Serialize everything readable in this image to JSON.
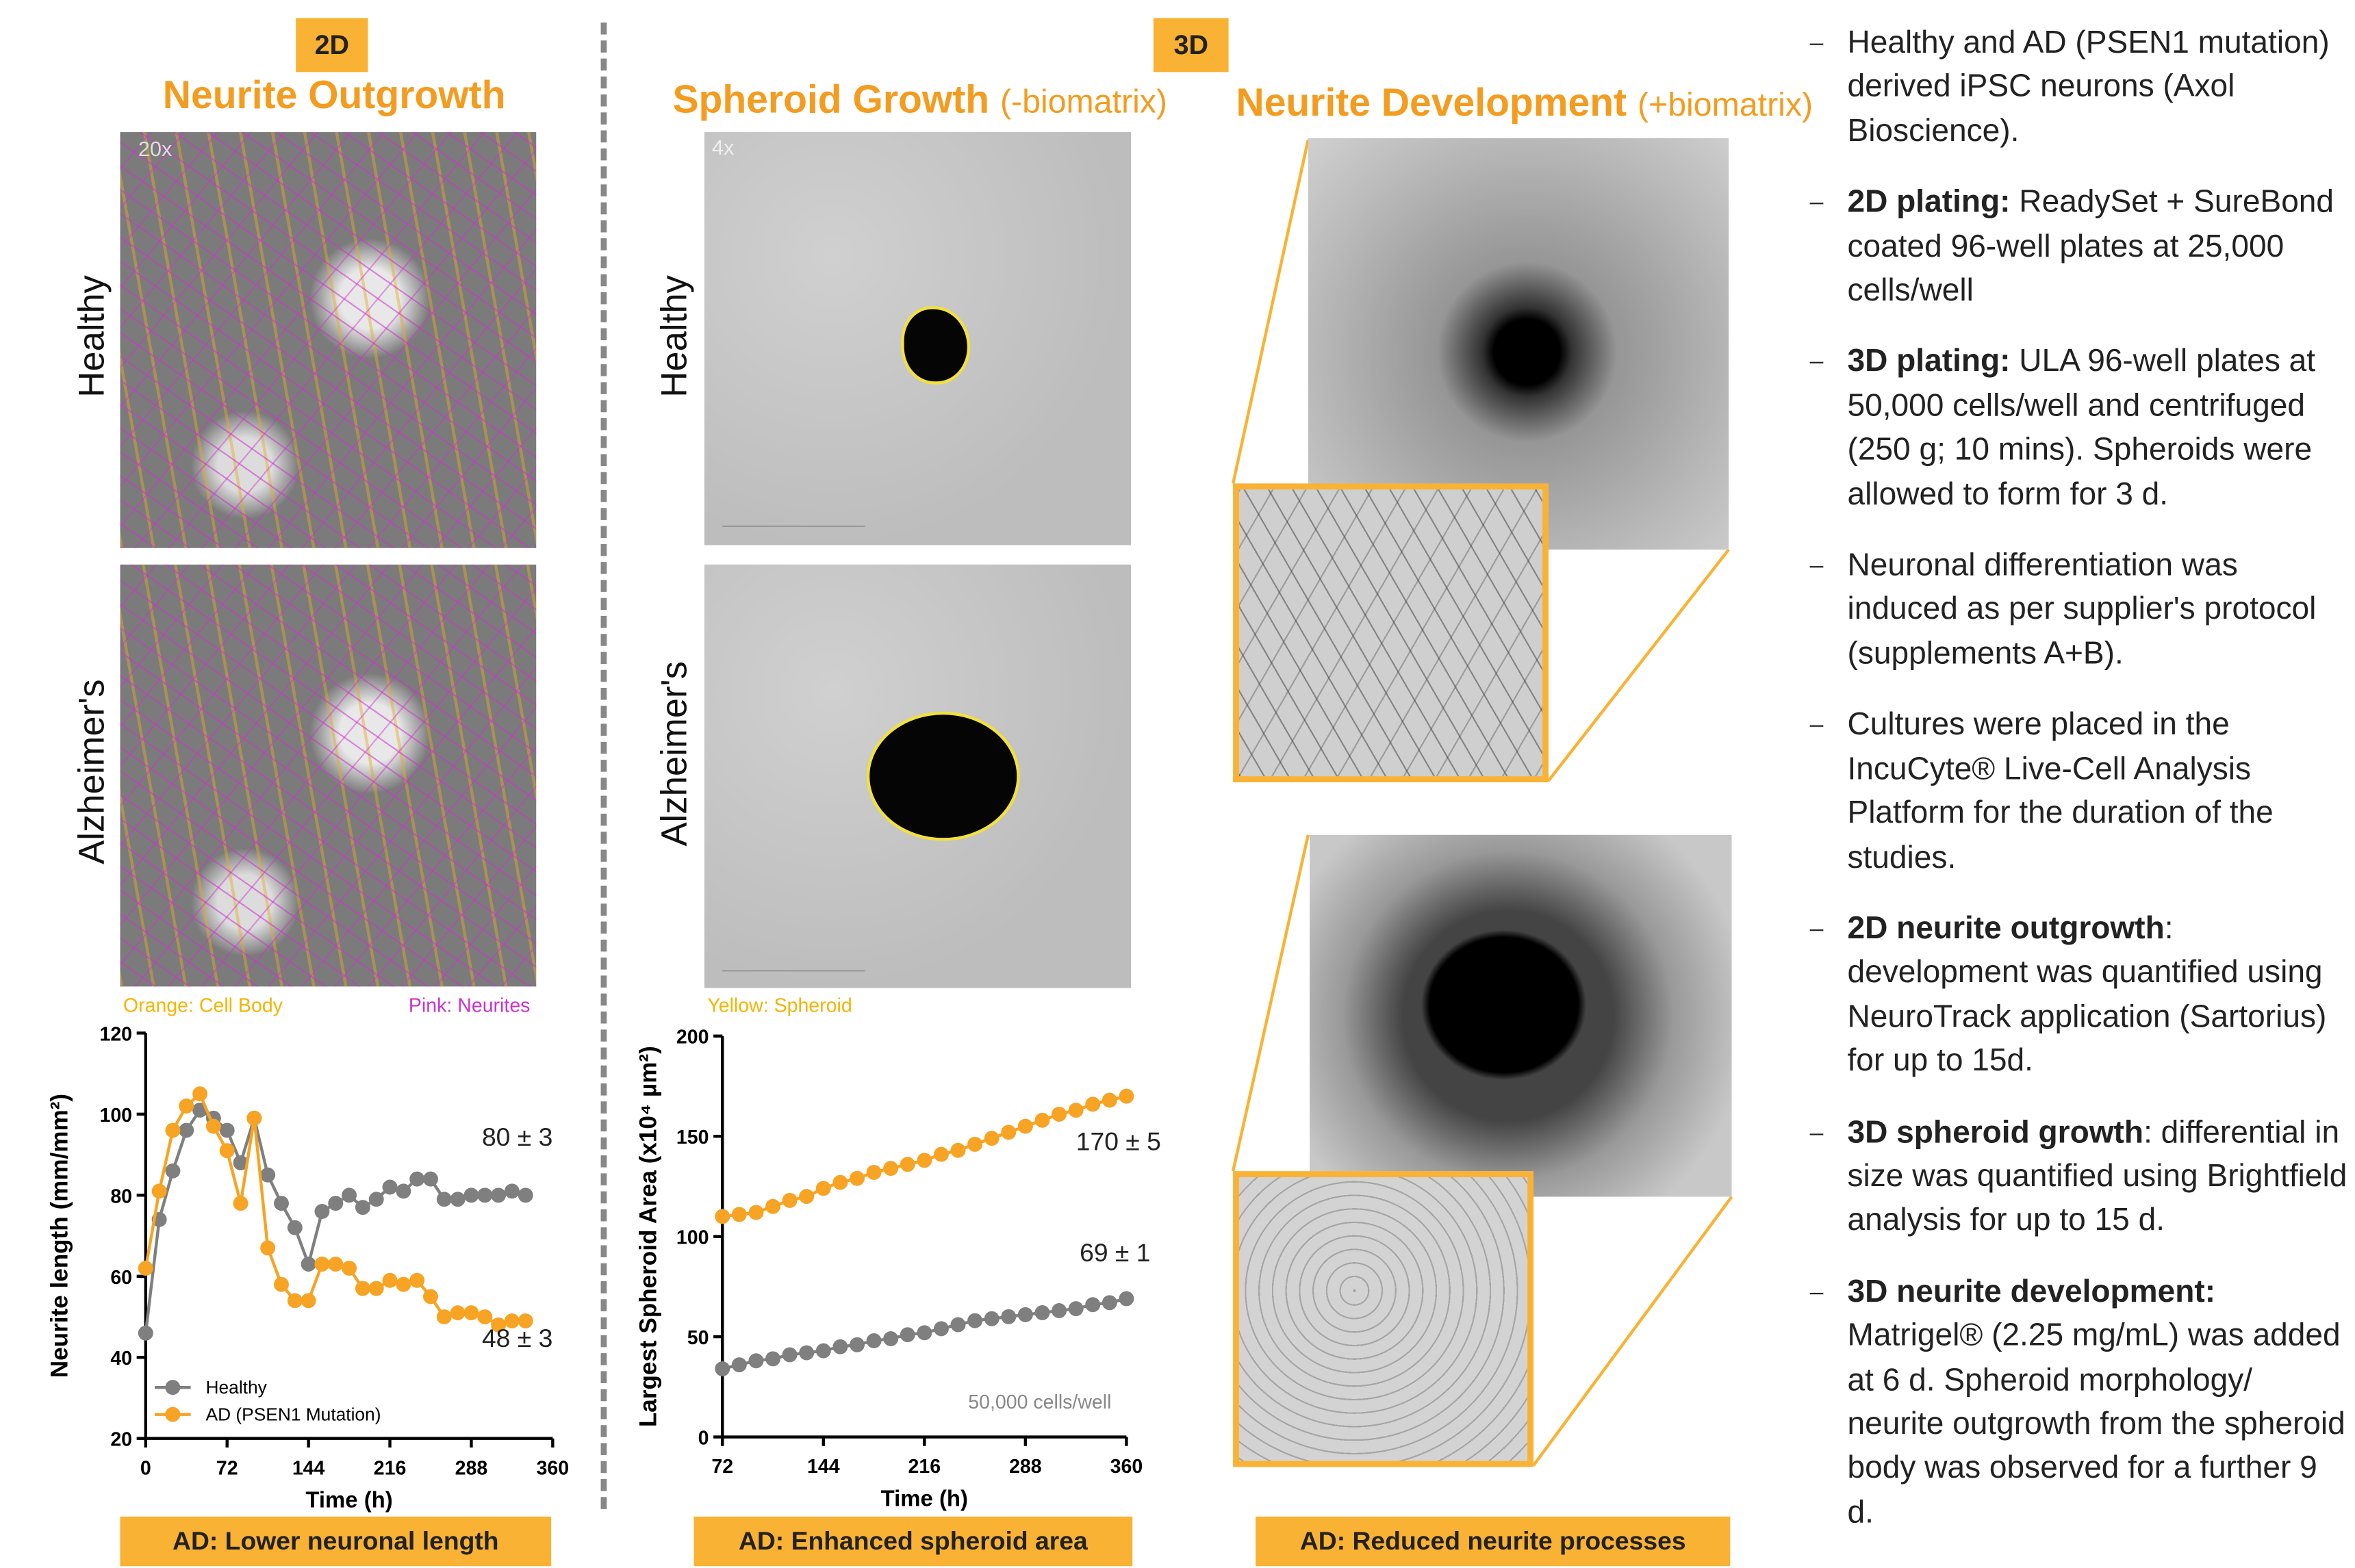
{
  "header_2d": "2D",
  "title_2d": "Neurite Outgrowth",
  "header_3d": "3D",
  "spheroid_title": "Spheroid Growth",
  "spheroid_sub": "(-biomatrix)",
  "neurite_title": "Neurite Development",
  "neurite_sub": "(+biomatrix)",
  "images": {
    "mag_2d": "20x",
    "mag_3d": "4x",
    "healthy": "Healthy",
    "alzheimers": "Alzheimer's"
  },
  "captions": [
    "Orange: Cell Body",
    "Pink: Neurites",
    "Yellow: Spheroid"
  ],
  "conclusions": [
    "AD: Lower neuronal length",
    "AD: Enhanced spheroid area",
    "AD: Reduced neurite processes"
  ],
  "notes": [
    {
      "text": "Healthy and AD (PSEN1 mutation) derived iPSC neurons (Axol Bioscience)."
    },
    {
      "bold": "2D plating:",
      "text": " ReadySet + SureBond coated 96-well plates at 25,000 cells/well"
    },
    {
      "bold": "3D plating:",
      "text": " ULA 96-well plates at 50,000 cells/well and centrifuged (250 g; 10 mins). Spheroids were allowed to form for 3 d."
    },
    {
      "text": "Neuronal differentiation was induced as per supplier's protocol (supplements A+B)."
    },
    {
      "text": "Cultures were placed in the IncuCyte® Live-Cell Analysis Platform for the duration of the studies."
    },
    {
      "bold": "2D neurite outgrowth",
      "text": ": development was quantified using NeuroTrack application (Sartorius) for up to 15d."
    },
    {
      "bold": "3D spheroid growth",
      "text": ": differential in size was quantified using Brightfield analysis for up to 15 d."
    },
    {
      "bold": "3D neurite development:",
      "text": " Matrigel® (2.25 mg/mL) was added at 6 d. Spheroid morphology/ neurite outgrowth from the spheroid body was observed for a further 9 d."
    }
  ],
  "chart_data": [
    {
      "type": "line",
      "x_label": "Time (h)",
      "y_label": "Neurite length (mm/mm²)",
      "x": [
        0,
        12,
        24,
        36,
        48,
        60,
        72,
        84,
        96,
        108,
        120,
        132,
        144,
        156,
        168,
        180,
        192,
        204,
        216,
        228,
        240,
        252,
        264,
        276,
        288,
        300,
        312,
        324,
        336
      ],
      "series": [
        {
          "name": "Healthy",
          "color": "#7f7f7f",
          "values": [
            46,
            74,
            86,
            96,
            101,
            99,
            96,
            88,
            99,
            85,
            78,
            72,
            63,
            76,
            78,
            80,
            77,
            79,
            82,
            81,
            84,
            84,
            79,
            79,
            80,
            80,
            80,
            81,
            80
          ]
        },
        {
          "name": "AD (PSEN1 Mutation)",
          "color": "#f7a323",
          "values": [
            62,
            81,
            96,
            102,
            105,
            97,
            91,
            78,
            99,
            67,
            58,
            54,
            54,
            63,
            63,
            62,
            57,
            57,
            59,
            58,
            59,
            55,
            50,
            51,
            51,
            50,
            48,
            49,
            49
          ]
        }
      ],
      "xlim": [
        0,
        360
      ],
      "xticks": [
        0,
        72,
        144,
        216,
        288,
        360
      ],
      "ylim": [
        20,
        120
      ],
      "yticks": [
        20,
        40,
        60,
        80,
        100,
        120
      ],
      "legend": "lower left",
      "annotations": [
        "80 ± 3",
        "48 ± 3"
      ]
    },
    {
      "type": "line",
      "x_label": "Time (h)",
      "y_label": "Largest Spheroid Area (x10⁴ µm²)",
      "x": [
        72,
        84,
        96,
        108,
        120,
        132,
        144,
        156,
        168,
        180,
        192,
        204,
        216,
        228,
        240,
        252,
        264,
        276,
        288,
        300,
        312,
        324,
        336,
        348,
        360
      ],
      "series": [
        {
          "color": "#f7a323",
          "values": [
            110,
            111,
            112,
            115,
            118,
            120,
            124,
            127,
            129,
            132,
            134,
            136,
            138,
            141,
            143,
            146,
            149,
            152,
            155,
            158,
            161,
            163,
            166,
            168,
            170
          ]
        },
        {
          "color": "#7f7f7f",
          "values": [
            34,
            36,
            38,
            39,
            41,
            42,
            43,
            45,
            46,
            48,
            49,
            51,
            52,
            54,
            56,
            58,
            59,
            60,
            61,
            62,
            63,
            64,
            66,
            67,
            69
          ]
        }
      ],
      "xlim": [
        72,
        360
      ],
      "xticks": [
        72,
        144,
        216,
        288,
        360
      ],
      "ylim": [
        0,
        200
      ],
      "yticks": [
        0,
        50,
        100,
        150,
        200
      ],
      "annotations": [
        "170 ± 5",
        "69 ± 1",
        "50,000 cells/well"
      ]
    }
  ]
}
